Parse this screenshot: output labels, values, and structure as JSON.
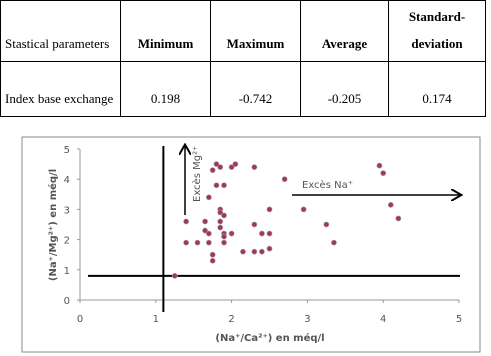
{
  "table": {
    "header": [
      "Stastical parameters",
      "Minimum",
      "Maximum",
      "Average",
      "Standard-deviation"
    ],
    "rows": [
      [
        "Index base exchange",
        0.198,
        -0.742,
        -0.205,
        0.174
      ]
    ]
  },
  "chart_data": {
    "type": "scatter",
    "xlabel": "(Na⁺/Ca²⁺) en méq/l",
    "ylabel": "(Na⁺/Mg²⁺) en méq/l",
    "annotations": [
      "Excès  Mg²⁺",
      "Excès  Na⁺"
    ],
    "xlim": [
      0,
      5
    ],
    "ylim": [
      0,
      5
    ],
    "xticks": [
      0,
      1,
      2,
      3,
      4,
      5
    ],
    "yticks": [
      0,
      1,
      2,
      3,
      4,
      5
    ],
    "vlines": [
      1.1
    ],
    "hlines": [
      0.8
    ],
    "series": [
      {
        "color": "#a2365f",
        "x": [
          1.25,
          1.4,
          1.4,
          1.55,
          1.65,
          1.65,
          1.7,
          1.7,
          1.75,
          1.75,
          1.7,
          1.75,
          1.8,
          1.8,
          1.85,
          1.85,
          1.85,
          1.85,
          1.9,
          1.9,
          1.9,
          1.9,
          1.85,
          1.9,
          2.0,
          2.0,
          2.05,
          2.15,
          2.3,
          2.3,
          2.3,
          2.4,
          2.4,
          2.5,
          2.5,
          2.5,
          2.7,
          2.95,
          3.25,
          3.35,
          3.95,
          4.0,
          4.1,
          4.2
        ],
        "y": [
          0.8,
          2.6,
          1.9,
          1.9,
          2.6,
          2.3,
          2.2,
          1.9,
          1.3,
          1.5,
          3.4,
          4.3,
          4.5,
          3.8,
          3.0,
          2.9,
          2.6,
          2.4,
          2.2,
          2.1,
          1.9,
          2.8,
          4.4,
          3.8,
          2.2,
          4.4,
          4.5,
          1.6,
          1.6,
          2.5,
          4.4,
          2.2,
          1.6,
          3.0,
          2.2,
          1.7,
          4.0,
          3.0,
          2.5,
          1.9,
          4.45,
          4.2,
          3.15,
          2.7
        ]
      }
    ]
  }
}
